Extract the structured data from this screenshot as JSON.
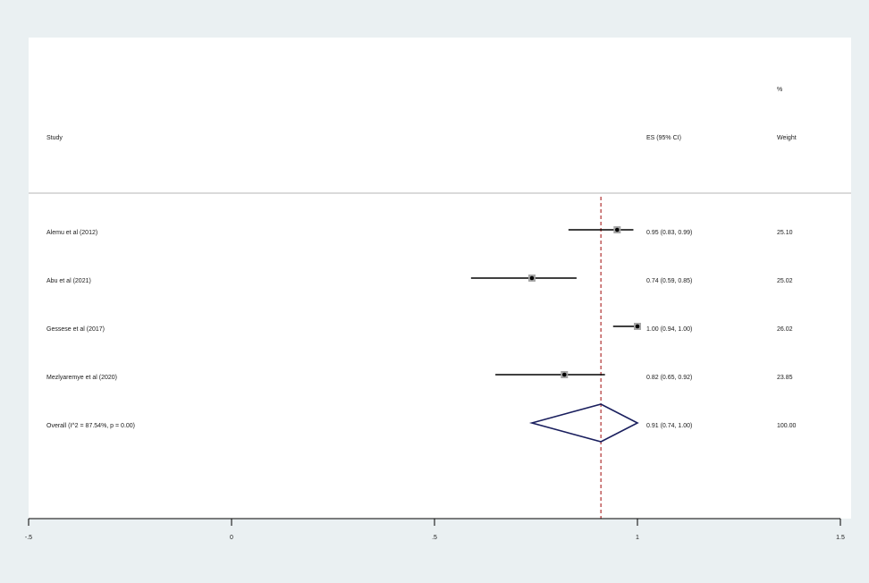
{
  "chart_data": {
    "type": "forest",
    "headers": {
      "study": "Study",
      "es": "ES (95% CI)",
      "weight_top": "%",
      "weight": "Weight"
    },
    "studies": [
      {
        "label": "Alemu et al (2012)",
        "es": 0.95,
        "lo": 0.83,
        "hi": 0.99,
        "es_text": "0.95 (0.83, 0.99)",
        "weight": "25.10"
      },
      {
        "label": "Abu et al (2021)",
        "es": 0.74,
        "lo": 0.59,
        "hi": 0.85,
        "es_text": "0.74 (0.59, 0.85)",
        "weight": "25.02"
      },
      {
        "label": "Gessese et al (2017)",
        "es": 1.0,
        "lo": 0.94,
        "hi": 1.0,
        "es_text": "1.00 (0.94, 1.00)",
        "weight": "26.02"
      },
      {
        "label": "Mezlyaremye et al (2020)",
        "es": 0.82,
        "lo": 0.65,
        "hi": 0.92,
        "es_text": "0.82 (0.65, 0.92)",
        "weight": "23.85"
      }
    ],
    "overall": {
      "label": "Overall  (I^2 = 87.54%, p = 0.00)",
      "es": 0.91,
      "lo": 0.74,
      "hi": 1.0,
      "es_text": "0.91 (0.74, 1.00)",
      "weight": "100.00"
    },
    "xlim": [
      -0.5,
      1.5
    ],
    "xticks": [
      -0.5,
      0,
      0.5,
      1,
      1.5
    ],
    "xtick_labels": [
      "-.5",
      "0",
      ".5",
      "1",
      "1.5"
    ],
    "colors": {
      "background": "#eaf0f2",
      "panel": "#ffffff",
      "ci_line": "#000000",
      "marker": "#000000",
      "weight_box": "#a6a6a6",
      "diamond": "#1a1f5e",
      "overall_line": "#b03030"
    }
  }
}
